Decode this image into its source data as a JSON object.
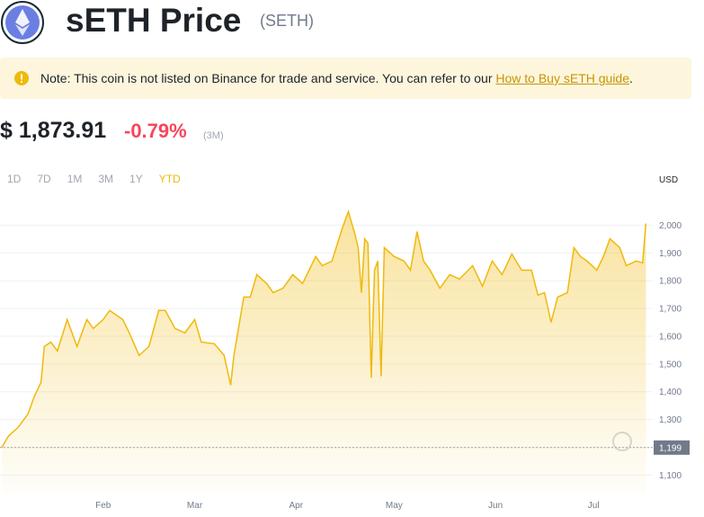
{
  "header": {
    "title": "sETH Price",
    "symbol": "(SETH)"
  },
  "note": {
    "text": "Note: This coin is not listed on Binance for trade and service. You can refer to our",
    "link": "How to Buy sETH guide",
    "end": "."
  },
  "price": {
    "value": "$ 1,873.91",
    "change": "-0.79%",
    "period": "(3M)"
  },
  "timeframes": {
    "options": [
      "1D",
      "7D",
      "1M",
      "3M",
      "1Y",
      "YTD"
    ],
    "active": 5
  },
  "chart_data": {
    "type": "line",
    "currency": "USD",
    "color": "#f0b90b",
    "grid": true,
    "x": [
      0,
      2,
      5,
      8,
      10,
      12,
      13,
      15,
      17,
      20,
      23,
      26,
      28,
      31,
      33,
      37,
      39,
      42,
      45,
      48,
      50,
      53,
      56,
      59,
      61,
      65,
      68,
      70,
      71,
      74,
      76,
      78,
      81,
      83,
      86,
      89,
      92,
      94,
      96,
      98,
      101,
      104,
      106,
      108,
      109,
      110,
      111,
      112,
      113,
      114,
      115,
      116,
      117,
      120,
      123,
      125,
      127,
      129,
      131,
      134,
      137,
      140,
      144,
      147,
      150,
      153,
      156,
      159,
      162,
      164,
      166,
      168,
      170,
      173,
      175,
      177,
      179,
      182,
      184,
      186,
      189,
      191,
      194,
      196,
      197
    ],
    "series": [
      {
        "name": "sETH",
        "values": [
          1199,
          1240,
          1272,
          1320,
          1385,
          1434,
          1563,
          1579,
          1547,
          1660,
          1563,
          1660,
          1628,
          1660,
          1693,
          1660,
          1612,
          1531,
          1563,
          1693,
          1693,
          1628,
          1612,
          1660,
          1579,
          1573,
          1531,
          1424,
          1531,
          1741,
          1741,
          1822,
          1790,
          1757,
          1773,
          1822,
          1790,
          1838,
          1887,
          1854,
          1871,
          1984,
          2049,
          1968,
          1919,
          1757,
          1951,
          1935,
          1450,
          1838,
          1871,
          1456,
          1919,
          1887,
          1871,
          1838,
          1977,
          1871,
          1838,
          1773,
          1822,
          1806,
          1854,
          1780,
          1871,
          1822,
          1896,
          1838,
          1838,
          1748,
          1757,
          1650,
          1741,
          1757,
          1919,
          1887,
          1871,
          1838,
          1887,
          1951,
          1919,
          1854,
          1871,
          1864,
          2006
        ]
      }
    ],
    "xlim": [
      0,
      198
    ],
    "xticks": [
      {
        "value": 31,
        "label": "Feb"
      },
      {
        "value": 59,
        "label": "Mar"
      },
      {
        "value": 90,
        "label": "Apr"
      },
      {
        "value": 120,
        "label": "May"
      },
      {
        "value": 151,
        "label": "Jun"
      },
      {
        "value": 181,
        "label": "Jul"
      }
    ],
    "ylim": [
      1030,
      2105
    ],
    "yticks": [
      {
        "value": 1100,
        "label": "1,100"
      },
      {
        "value": 1200,
        "label": "1,200"
      },
      {
        "value": 1300,
        "label": "1,300"
      },
      {
        "value": 1400,
        "label": "1,400"
      },
      {
        "value": 1500,
        "label": "1,500"
      },
      {
        "value": 1600,
        "label": "1,600"
      },
      {
        "value": 1700,
        "label": "1,700"
      },
      {
        "value": 1800,
        "label": "1,800"
      },
      {
        "value": 1900,
        "label": "1,900"
      },
      {
        "value": 2000,
        "label": "2,000"
      }
    ],
    "ref_line": {
      "value": 1199,
      "label": "1,199"
    }
  }
}
